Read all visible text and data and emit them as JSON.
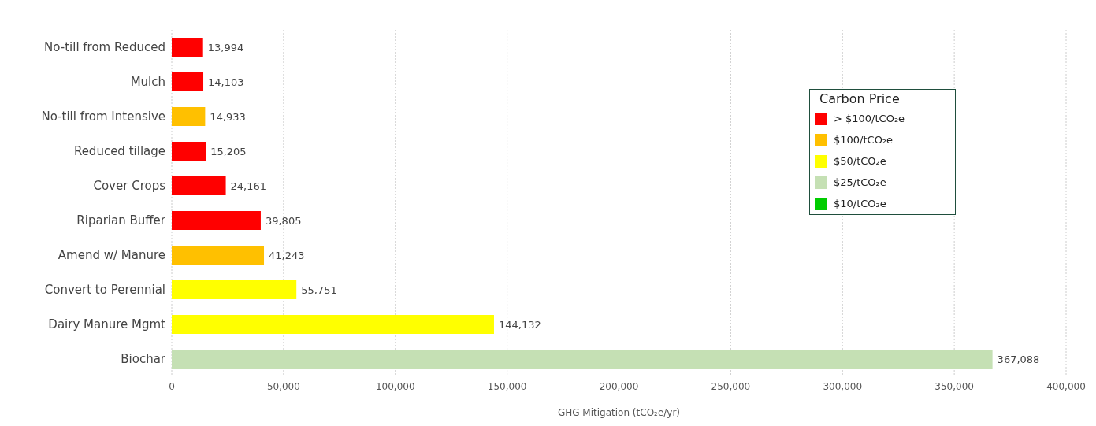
{
  "chart_data": {
    "type": "bar",
    "orientation": "horizontal",
    "stacked": true,
    "categories": [
      "No-till from Reduced",
      "Mulch",
      "No-till from Intensive",
      "Reduced tillage",
      "Cover Crops",
      "Riparian Buffer",
      "Amend w/ Manure",
      "Convert to Perennial",
      "Dairy Manure Mgmt",
      "Biochar"
    ],
    "series": [
      {
        "name": "> $100/tCO₂e",
        "color": "#ff0000",
        "values": [
          13994,
          14103,
          null,
          15205,
          24161,
          39805,
          null,
          null,
          null,
          null
        ],
        "value_labels": [
          "13,994",
          "14,103",
          null,
          "15,205",
          "24,161",
          "39,805",
          null,
          null,
          null,
          null
        ]
      },
      {
        "name": "$100/tCO₂e",
        "color": "#ffc000",
        "values": [
          null,
          null,
          14933,
          null,
          null,
          null,
          41243,
          null,
          null,
          null
        ],
        "value_labels": [
          null,
          null,
          "14,933",
          null,
          null,
          null,
          "41,243",
          null,
          null,
          null
        ]
      },
      {
        "name": "$50/tCO₂e",
        "color": "#ffff00",
        "values": [
          null,
          null,
          null,
          null,
          null,
          null,
          null,
          55751,
          144132,
          null
        ],
        "value_labels": [
          null,
          null,
          null,
          null,
          null,
          null,
          null,
          "55,751",
          "144,132",
          null
        ]
      },
      {
        "name": "$25/tCO₂e",
        "color": "#c5e0b4",
        "values": [
          null,
          null,
          null,
          null,
          null,
          null,
          null,
          null,
          null,
          367088
        ],
        "value_labels": [
          null,
          null,
          null,
          null,
          null,
          null,
          null,
          null,
          null,
          "367,088"
        ]
      },
      {
        "name": "$10/tCO₂e",
        "color": "#00cc00",
        "values": [
          null,
          null,
          null,
          null,
          null,
          null,
          null,
          null,
          null,
          null
        ]
      }
    ],
    "xlabel": "GHG Mitigation (tCO₂e/yr)",
    "xlim": [
      0,
      400000
    ],
    "xticks": [
      0,
      {
        "value": 50000,
        "label": "50,000"
      },
      {
        "value": 100000,
        "label": "100,000"
      },
      {
        "value": 150000,
        "label": "150,000"
      },
      {
        "value": 200000,
        "label": "200,000"
      },
      {
        "value": 250000,
        "label": "250,000"
      },
      {
        "value": 300000,
        "label": "300,000"
      },
      {
        "value": 350000,
        "label": "350,000"
      },
      {
        "value": 400000,
        "label": "400,000"
      }
    ],
    "grid": "x",
    "legend": "top right",
    "legend_title": "Carbon Price"
  }
}
